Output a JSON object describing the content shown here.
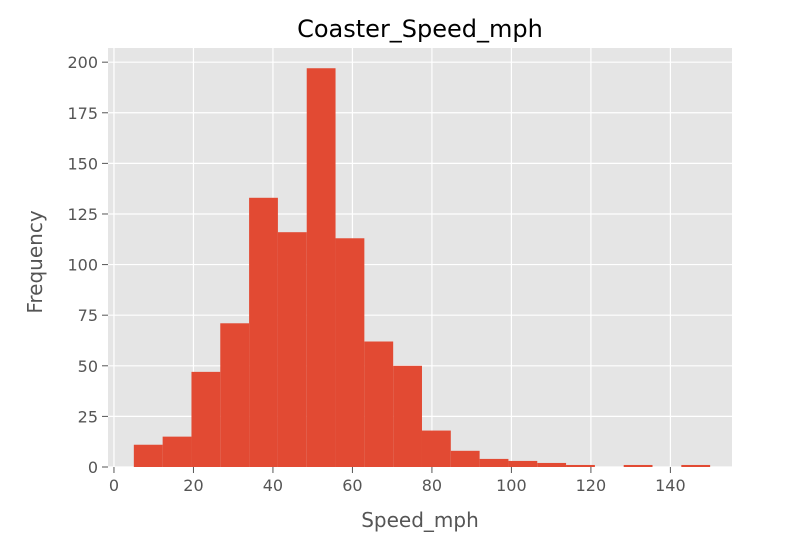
{
  "chart_data": {
    "type": "histogram",
    "title": "Coaster_Speed_mph",
    "xlabel": "Speed_mph",
    "ylabel": "Frequency",
    "xlim": [
      -1.5,
      155.5
    ],
    "ylim": [
      0,
      207
    ],
    "x_ticks": [
      0,
      20,
      40,
      60,
      80,
      100,
      120,
      140
    ],
    "y_ticks": [
      0,
      25,
      50,
      75,
      100,
      125,
      150,
      175,
      200
    ],
    "grid": true,
    "bar_color": "#E24A33",
    "background_color": "#E5E5E5",
    "grid_color": "#FFFFFF",
    "bins": [
      {
        "start": 5.0,
        "end": 12.25,
        "count": 11
      },
      {
        "start": 12.25,
        "end": 19.5,
        "count": 15
      },
      {
        "start": 19.5,
        "end": 26.75,
        "count": 47
      },
      {
        "start": 26.75,
        "end": 34.0,
        "count": 71
      },
      {
        "start": 34.0,
        "end": 41.25,
        "count": 133
      },
      {
        "start": 41.25,
        "end": 48.5,
        "count": 116
      },
      {
        "start": 48.5,
        "end": 55.75,
        "count": 197
      },
      {
        "start": 55.75,
        "end": 63.0,
        "count": 113
      },
      {
        "start": 63.0,
        "end": 70.25,
        "count": 62
      },
      {
        "start": 70.25,
        "end": 77.5,
        "count": 50
      },
      {
        "start": 77.5,
        "end": 84.75,
        "count": 18
      },
      {
        "start": 84.75,
        "end": 92.0,
        "count": 8
      },
      {
        "start": 92.0,
        "end": 99.25,
        "count": 4
      },
      {
        "start": 99.25,
        "end": 106.5,
        "count": 3
      },
      {
        "start": 106.5,
        "end": 113.75,
        "count": 2
      },
      {
        "start": 113.75,
        "end": 121.0,
        "count": 1
      },
      {
        "start": 121.0,
        "end": 128.25,
        "count": 0
      },
      {
        "start": 128.25,
        "end": 135.5,
        "count": 1
      },
      {
        "start": 135.5,
        "end": 142.75,
        "count": 0
      },
      {
        "start": 142.75,
        "end": 150.0,
        "count": 1
      }
    ]
  }
}
